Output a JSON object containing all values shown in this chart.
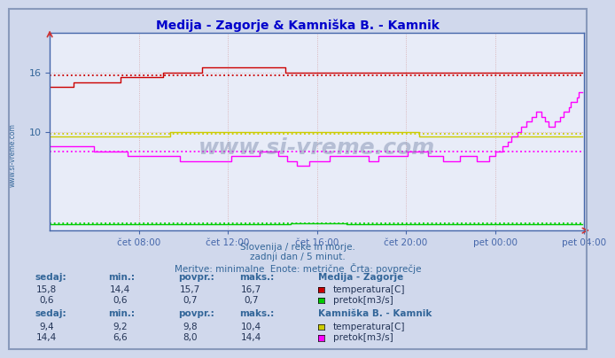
{
  "title": "Medija - Zagorje & Kamniška B. - Kamnik",
  "title_color": "#0000cc",
  "bg_color": "#d0d8ec",
  "plot_bg_color": "#e8ecf8",
  "grid_color": "#b0b8d0",
  "text_color": "#336699",
  "axis_color": "#4466aa",
  "x_ticks": [
    48,
    96,
    144,
    192,
    240,
    288
  ],
  "x_tick_labels": [
    "čet 08:00",
    "čet 12:00",
    "čet 16:00",
    "čet 20:00",
    "pet 00:00",
    "pet 04:00"
  ],
  "y_min": 0,
  "y_max": 20,
  "y_ticks": [
    10,
    16
  ],
  "medija_temp_avg": 15.7,
  "medija_pretok_avg": 0.7,
  "kamnik_temp_avg": 9.8,
  "kamnik_pretok_avg": 8.0,
  "medija_temp_color": "#cc0000",
  "medija_pretok_color": "#00cc00",
  "kamnik_temp_color": "#cccc00",
  "kamnik_pretok_color": "#ff00ff",
  "subtitle1": "Slovenija / reke in morje.",
  "subtitle2": "zadnji dan / 5 minut.",
  "subtitle3": "Meritve: minimalne  Enote: metrične  Črta: povprečje",
  "watermark": "www.si-vreme.com",
  "ylabel_text": "www.si-vreme.com",
  "table": {
    "label1": "Medija - Zagorje",
    "headers": [
      "sedaj:",
      "min.:",
      "povpr.:",
      "maks.:"
    ],
    "row1": [
      "15,8",
      "14,4",
      "15,7",
      "16,7"
    ],
    "row1_label": "temperatura[C]",
    "row1_color": "#cc0000",
    "row2": [
      "0,6",
      "0,6",
      "0,7",
      "0,7"
    ],
    "row2_label": "pretok[m3/s]",
    "row2_color": "#00cc00",
    "label2": "Kamniška B. - Kamnik",
    "row3": [
      "9,4",
      "9,2",
      "9,8",
      "10,4"
    ],
    "row3_label": "temperatura[C]",
    "row3_color": "#cccc00",
    "row4": [
      "14,4",
      "6,6",
      "8,0",
      "14,4"
    ],
    "row4_label": "pretok[m3/s]",
    "row4_color": "#ff00ff"
  }
}
